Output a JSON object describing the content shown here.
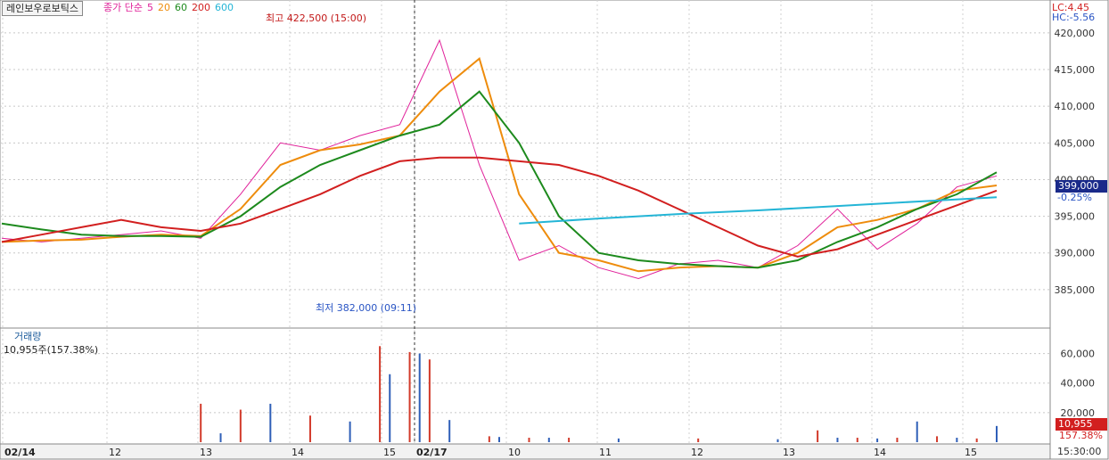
{
  "header": {
    "stock_name": "레인보우로보틱스",
    "ma_title": "종가 단순",
    "ma_periods": [
      {
        "label": "5",
        "color": "#e0219a"
      },
      {
        "label": "20",
        "color": "#ee8c0c"
      },
      {
        "label": "60",
        "color": "#1d8a1d"
      },
      {
        "label": "200",
        "color": "#d21f1f"
      },
      {
        "label": "600",
        "color": "#24b5d6"
      }
    ]
  },
  "right_badges": {
    "lc": "LC:4.45",
    "hc": "HC:-5.56",
    "price": "399,000",
    "change": "-0.25%",
    "volume": "10,955",
    "volume_pct": "157.38%"
  },
  "annotations": {
    "high": "최고 422,500 (15:00)",
    "low": "최저 382,000 (09:11)"
  },
  "volume_panel": {
    "title": "거래량",
    "value": "10,955주(157.38%)"
  },
  "time_label": "15:30:00",
  "chart_data": [
    {
      "type": "line",
      "panel": "price",
      "y_ticks": [
        385000,
        390000,
        395000,
        400000,
        405000,
        410000,
        415000,
        420000
      ],
      "y_tick_labels": [
        "385,000",
        "390,000",
        "395,000",
        "400,000",
        "405,000",
        "410,000",
        "415,000",
        "420,000"
      ],
      "ylim": [
        380000,
        424000
      ],
      "x_tick_labels": [
        "02/14",
        "12",
        "13",
        "14",
        "15",
        "02/17",
        "10",
        "11",
        "12",
        "13",
        "14",
        "15"
      ],
      "x_tick_bold": [
        true,
        false,
        false,
        false,
        false,
        true,
        false,
        false,
        false,
        false,
        false,
        false
      ],
      "grid": true,
      "series": [
        {
          "name": "5",
          "color": "#e0219a",
          "x": [
            0,
            4,
            8,
            12,
            16,
            20,
            24,
            28,
            32,
            36,
            40,
            44,
            48,
            52,
            56,
            60,
            64,
            68,
            72,
            76,
            80,
            84,
            88,
            92,
            96,
            100
          ],
          "values": [
            392000,
            391500,
            392000,
            392500,
            393000,
            392000,
            398000,
            405000,
            404000,
            406000,
            407500,
            419000,
            402000,
            389000,
            391000,
            388000,
            386500,
            388500,
            389000,
            388000,
            391000,
            396000,
            390500,
            394000,
            399000,
            400500
          ]
        },
        {
          "name": "20",
          "color": "#ee8c0c",
          "x": [
            0,
            4,
            8,
            12,
            16,
            20,
            24,
            28,
            32,
            36,
            40,
            44,
            48,
            52,
            56,
            60,
            64,
            68,
            72,
            76,
            80,
            84,
            88,
            92,
            96,
            100
          ],
          "values": [
            391500,
            391700,
            391800,
            392200,
            392500,
            392300,
            396000,
            402000,
            404000,
            404800,
            406000,
            412000,
            416500,
            398000,
            390000,
            389000,
            387500,
            388000,
            388200,
            388000,
            390000,
            393500,
            394500,
            396000,
            398500,
            399200
          ]
        },
        {
          "name": "60",
          "color": "#1d8a1d",
          "x": [
            0,
            4,
            8,
            12,
            16,
            20,
            24,
            28,
            32,
            36,
            40,
            44,
            48,
            52,
            56,
            60,
            64,
            68,
            72,
            76,
            80,
            84,
            88,
            92,
            96,
            100
          ],
          "values": [
            394000,
            393200,
            392500,
            392300,
            392300,
            392200,
            395000,
            399000,
            402000,
            404000,
            406000,
            407500,
            412000,
            405000,
            395000,
            390000,
            389000,
            388500,
            388200,
            388000,
            389000,
            391500,
            393500,
            396000,
            398000,
            401000
          ]
        },
        {
          "name": "200",
          "color": "#d21f1f",
          "x": [
            0,
            4,
            8,
            12,
            16,
            20,
            24,
            28,
            32,
            36,
            40,
            44,
            48,
            52,
            56,
            60,
            64,
            68,
            72,
            76,
            80,
            84,
            88,
            92,
            96,
            100
          ],
          "values": [
            391500,
            392500,
            393500,
            394500,
            393500,
            393000,
            394000,
            396000,
            398000,
            400500,
            402500,
            403000,
            403000,
            402500,
            402000,
            400500,
            398500,
            396000,
            393500,
            391000,
            389500,
            390500,
            392500,
            394500,
            396500,
            398500
          ]
        },
        {
          "name": "600",
          "color": "#24b5d6",
          "x": [
            52,
            60,
            68,
            76,
            84,
            92,
            100
          ],
          "values": [
            394000,
            394700,
            395300,
            395800,
            396400,
            397000,
            397600
          ]
        }
      ]
    },
    {
      "type": "bar",
      "panel": "volume",
      "y_ticks": [
        20000,
        40000,
        60000
      ],
      "y_tick_labels": [
        "20,000",
        "40,000",
        "60,000"
      ],
      "ylim": [
        0,
        70000
      ],
      "series": [
        {
          "name": "거래량",
          "x": [
            20,
            22,
            24,
            27,
            31,
            35,
            38,
            39,
            41,
            42,
            43,
            45,
            49,
            50,
            53,
            55,
            57,
            62,
            70,
            78,
            82,
            84,
            86,
            88,
            90,
            92,
            94,
            96,
            98,
            100
          ],
          "values": [
            26000,
            6000,
            22000,
            26000,
            18000,
            14000,
            65000,
            46000,
            61000,
            60000,
            56000,
            15000,
            4000,
            3500,
            3000,
            3000,
            3000,
            2500,
            2500,
            2000,
            8000,
            3000,
            3000,
            2500,
            3000,
            14000,
            4000,
            3000,
            2500,
            10955
          ]
        }
      ]
    }
  ]
}
